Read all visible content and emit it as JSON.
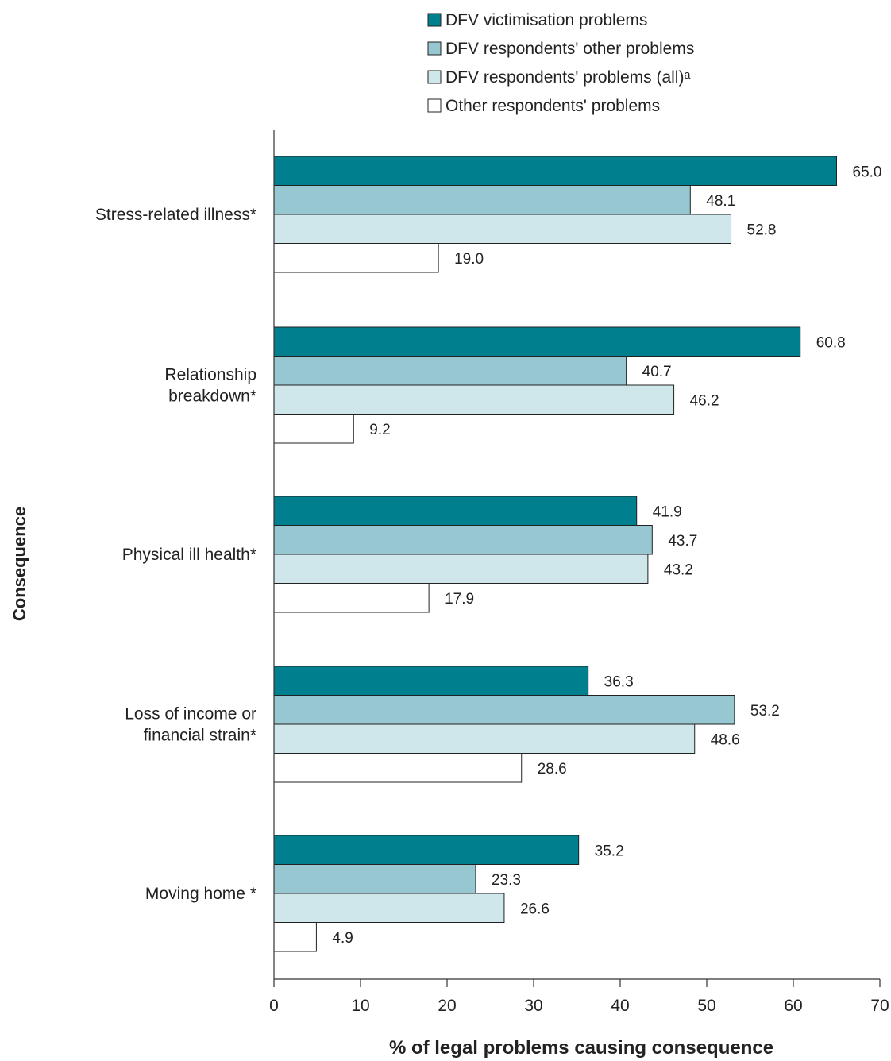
{
  "chart_data": {
    "type": "bar",
    "orientation": "horizontal",
    "xlabel": "% of legal problems causing consequence",
    "ylabel": "Consequence",
    "xlim": [
      0,
      70
    ],
    "xticks": [
      0,
      10,
      20,
      30,
      40,
      50,
      60,
      70
    ],
    "grid": false,
    "legend_position": "top",
    "categories": [
      [
        "Stress-related illness*"
      ],
      [
        "Relationship",
        "breakdown*"
      ],
      [
        "Physical ill health*"
      ],
      [
        "Loss of income or",
        "financial strain*"
      ],
      [
        "Moving home *"
      ]
    ],
    "series": [
      {
        "name": "DFV victimisation problems",
        "color": "#00808e",
        "values": [
          65.0,
          60.8,
          41.9,
          36.3,
          35.2
        ]
      },
      {
        "name": "DFV respondents' other problems",
        "color": "#97c7d0",
        "values": [
          48.1,
          40.7,
          43.7,
          53.2,
          23.3
        ]
      },
      {
        "name": "DFV respondents' problems (all)ᵃ",
        "color": "#cfe6eb",
        "values": [
          52.8,
          46.2,
          43.2,
          48.6,
          26.6
        ]
      },
      {
        "name": "Other respondents' problems",
        "color": "#ffffff",
        "values": [
          19.0,
          9.2,
          17.9,
          28.6,
          4.9
        ]
      }
    ]
  }
}
